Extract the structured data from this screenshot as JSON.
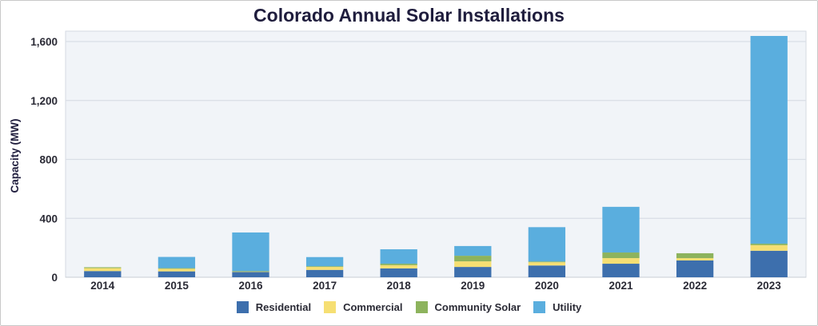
{
  "chart_data": {
    "type": "bar",
    "stacked": true,
    "title": "Colorado Annual Solar Installations",
    "xlabel": "",
    "ylabel": "Capacity (MW)",
    "ylim": [
      0,
      1700
    ],
    "yticks": [
      0,
      400,
      800,
      1200,
      1600
    ],
    "ytick_labels": [
      "0",
      "400",
      "800",
      "1,200",
      "1,600"
    ],
    "grid": true,
    "legend_position": "bottom-center",
    "categories": [
      "2014",
      "2015",
      "2016",
      "2017",
      "2018",
      "2019",
      "2020",
      "2021",
      "2022",
      "2023"
    ],
    "series": [
      {
        "name": "Residential",
        "color": "#3d6fad",
        "values": [
          42,
          40,
          36,
          50,
          60,
          70,
          80,
          92,
          114,
          180
        ]
      },
      {
        "name": "Commercial",
        "color": "#f6df73",
        "values": [
          20,
          18,
          4,
          20,
          22,
          38,
          22,
          38,
          16,
          38
        ]
      },
      {
        "name": "Community Solar",
        "color": "#8db35d",
        "values": [
          6,
          4,
          2,
          5,
          10,
          38,
          5,
          38,
          33,
          10
        ]
      },
      {
        "name": "Utility",
        "color": "#5aaede",
        "values": [
          0,
          76,
          262,
          62,
          98,
          66,
          233,
          310,
          0,
          1410
        ]
      }
    ]
  }
}
